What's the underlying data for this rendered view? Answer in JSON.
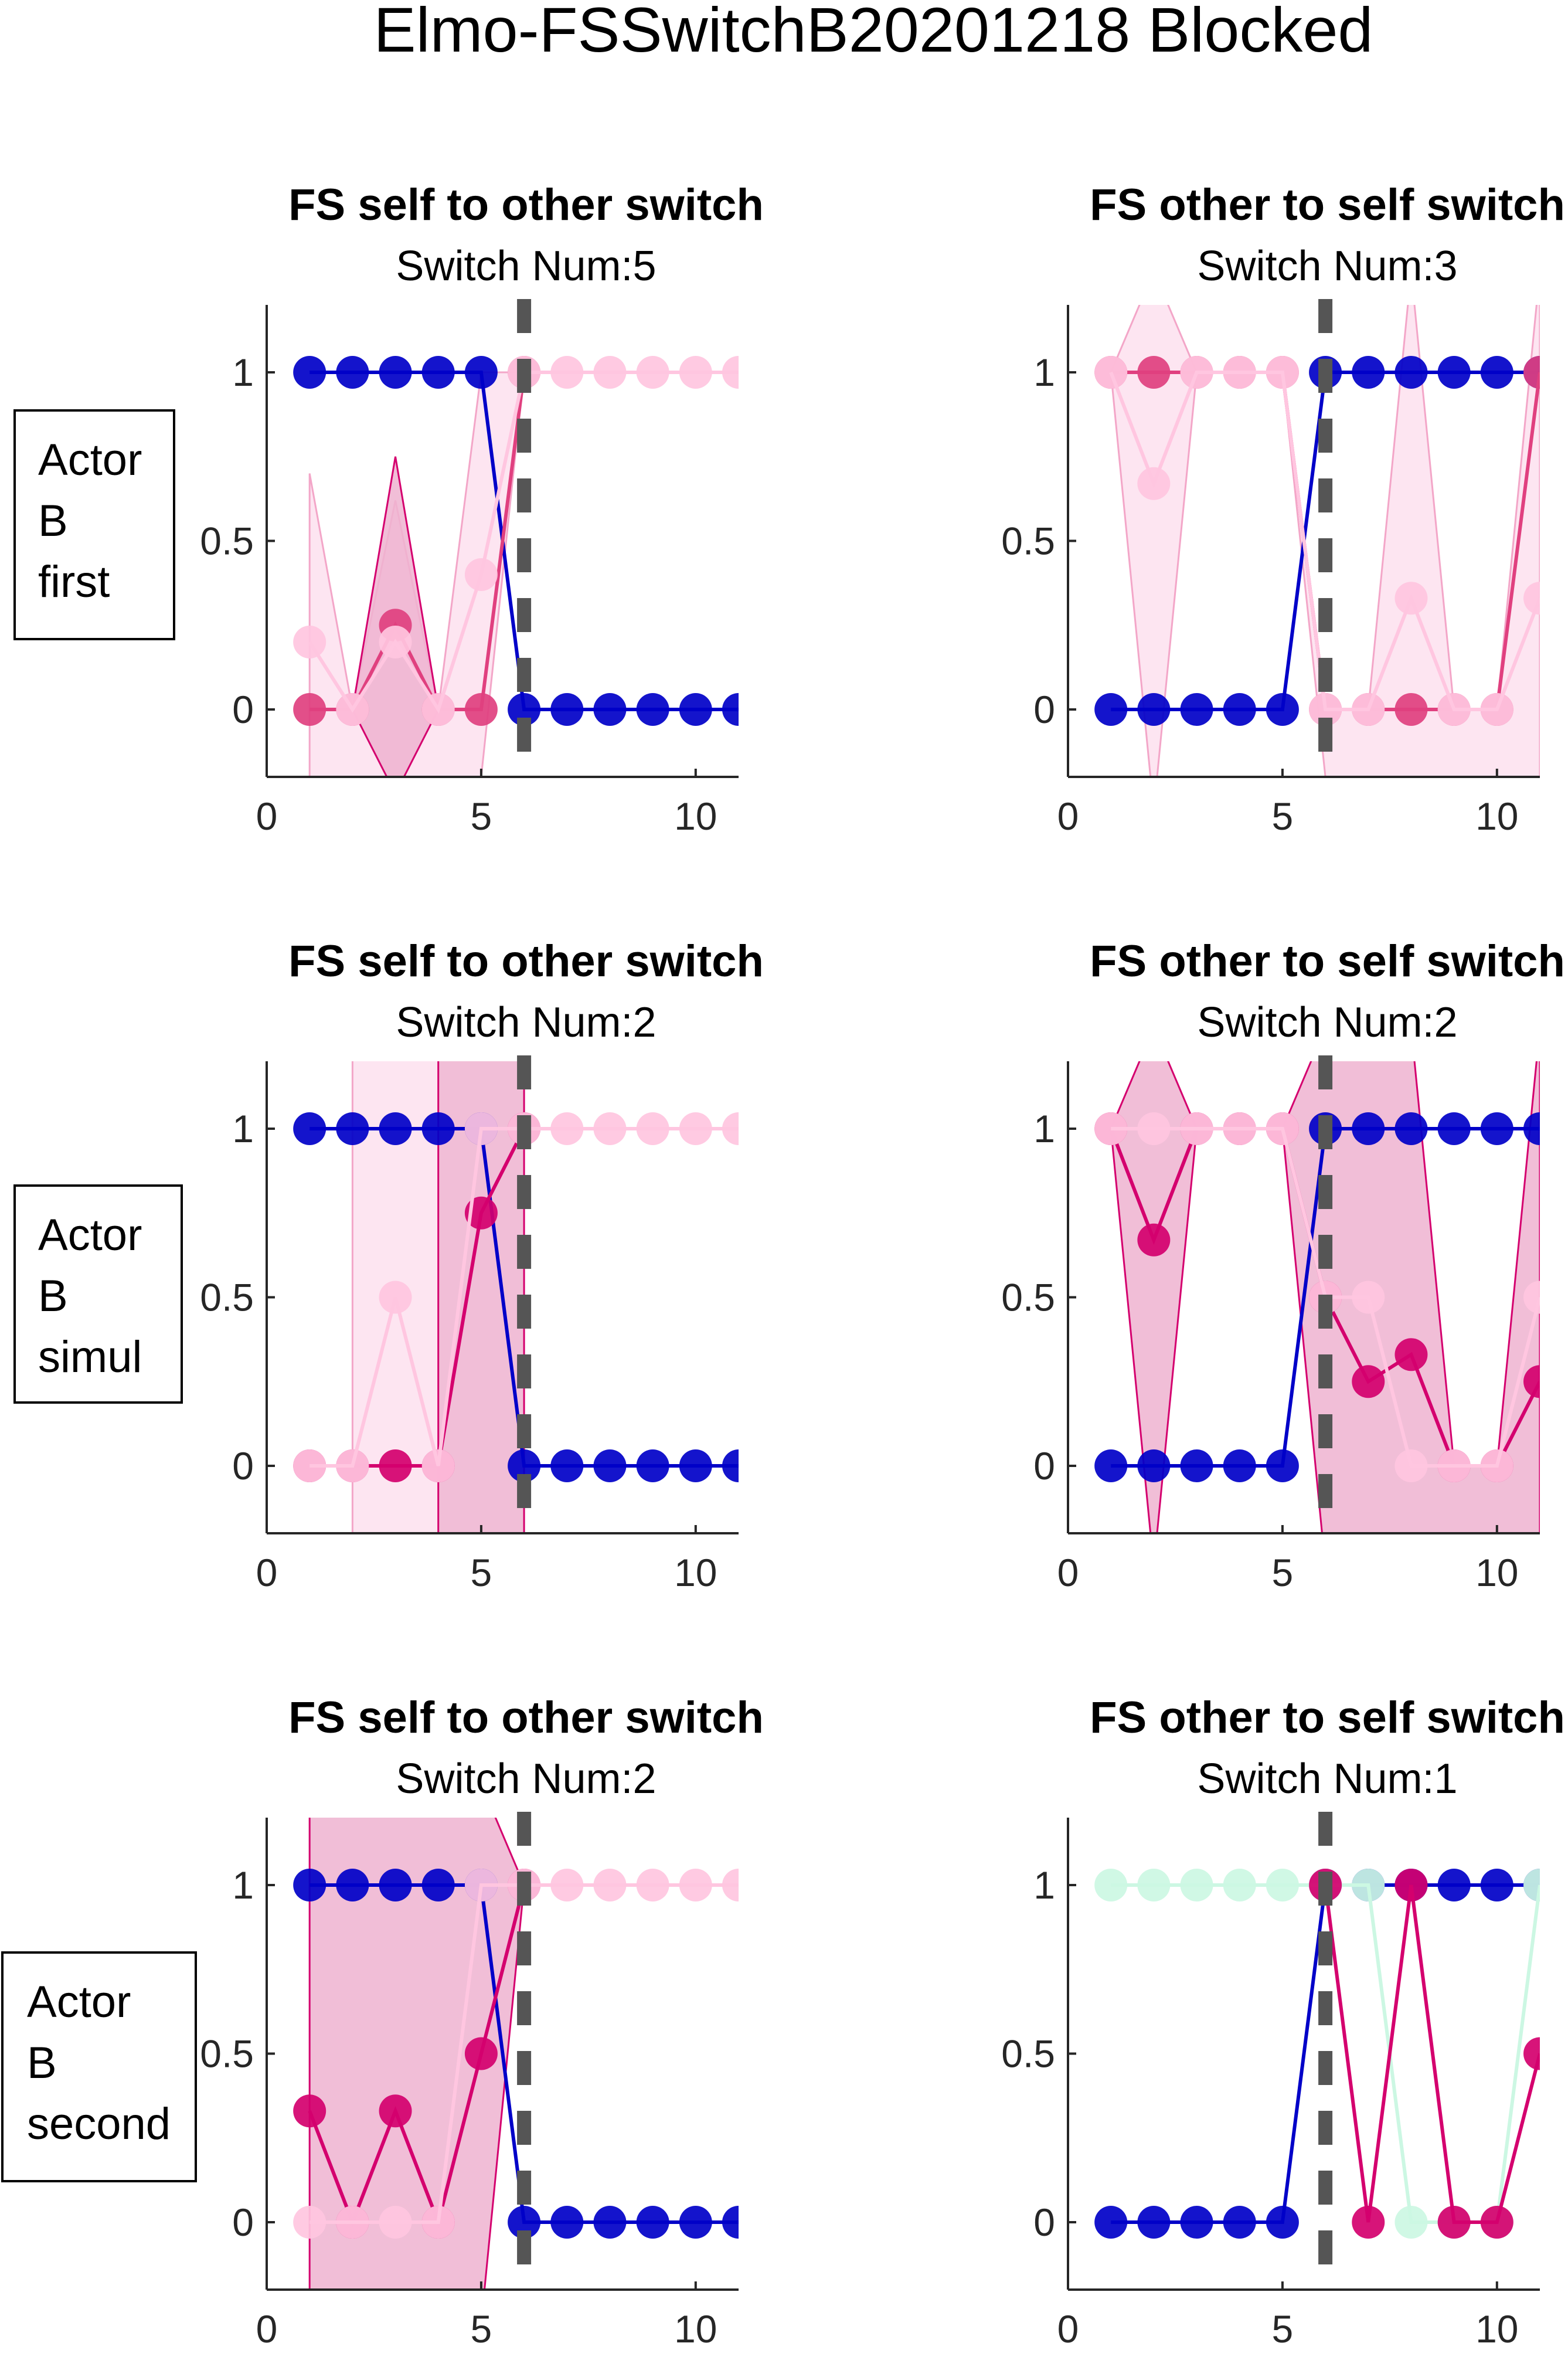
{
  "figure": {
    "title": "Elmo-FSSwitchB20201218 Blocked"
  },
  "colors": {
    "blue": "#0000c8",
    "blue_light": "#5050dc",
    "purple": "#6a2cc0",
    "magenta": "#d4006e",
    "pink_mid": "#e0407f",
    "pink_light": "#ffc6e0",
    "band_light": "#fde0ee",
    "band_dark": "#eeb3d0",
    "mint": "#ccf7e3",
    "switch_line": "#555555",
    "axis": "#262626"
  },
  "rows": [
    {
      "label_lines": [
        "Actor",
        "B",
        "first"
      ]
    },
    {
      "label_lines": [
        "Actor",
        "B",
        "simul"
      ]
    },
    {
      "label_lines": [
        "Actor",
        "B",
        "second"
      ]
    }
  ],
  "chart_data": [
    {
      "type": "line",
      "title": "FS self to other switch",
      "subtitle": "Switch Num:5",
      "xlim": [
        0,
        11
      ],
      "ylim": [
        -0.2,
        1.2
      ],
      "xticks": [
        "0",
        "5",
        "10"
      ],
      "yticks": [
        "0",
        "0.5",
        "1"
      ],
      "switch_x": 6,
      "bands": [
        {
          "color": "band_light",
          "x": [
            1,
            2,
            3,
            4,
            5,
            6
          ],
          "lo": [
            -0.3,
            -0.3,
            -0.3,
            -0.3,
            -0.2,
            1
          ],
          "hi": [
            0.7,
            0,
            0.62,
            0,
            1,
            1
          ]
        },
        {
          "color": "band_dark",
          "x": [
            1,
            2,
            3,
            4,
            5,
            6
          ],
          "lo": [
            0,
            0,
            -0.25,
            0,
            0,
            1
          ],
          "hi": [
            0,
            0,
            0.75,
            0,
            0,
            1
          ]
        }
      ],
      "series": [
        {
          "color": "blue",
          "x": [
            1,
            2,
            3,
            4,
            5,
            6,
            7,
            8,
            9,
            10,
            11
          ],
          "y": [
            1,
            1,
            1,
            1,
            1,
            0,
            0,
            0,
            0,
            0,
            0
          ]
        },
        {
          "color": "pink_mid",
          "x": [
            1,
            2,
            3,
            4,
            5,
            6
          ],
          "y": [
            0,
            0,
            0.25,
            0,
            0,
            1
          ]
        },
        {
          "color": "pink_light",
          "x": [
            1,
            2,
            3,
            4,
            5,
            6,
            7,
            8,
            9,
            10,
            11
          ],
          "y": [
            0.2,
            0,
            0.2,
            0,
            0.4,
            1,
            1,
            1,
            1,
            1,
            1
          ]
        }
      ]
    },
    {
      "type": "line",
      "title": "FS other to self switch",
      "subtitle": "Switch Num:3",
      "xlim": [
        0,
        11
      ],
      "ylim": [
        -0.2,
        1.2
      ],
      "xticks": [
        "0",
        "5",
        "10"
      ],
      "yticks": [
        "0",
        "0.5",
        "1"
      ],
      "switch_x": 6,
      "bands": [
        {
          "color": "band_light",
          "x": [
            1,
            2,
            3,
            4,
            5,
            6,
            7,
            8,
            9,
            10,
            11
          ],
          "lo": [
            1,
            -0.3,
            1,
            1,
            1,
            -0.2,
            -0.2,
            -0.3,
            -0.2,
            -0.2,
            -0.3
          ],
          "hi": [
            1,
            1.3,
            1,
            1,
            1,
            0,
            0,
            1.3,
            0,
            0,
            1.3
          ]
        }
      ],
      "series": [
        {
          "color": "blue",
          "x": [
            1,
            2,
            3,
            4,
            5,
            6,
            7,
            8,
            9,
            10,
            11
          ],
          "y": [
            0,
            0,
            0,
            0,
            0,
            1,
            1,
            1,
            1,
            1,
            1
          ]
        },
        {
          "color": "pink_mid",
          "x": [
            1,
            2,
            3,
            4,
            5,
            6,
            7,
            8,
            9,
            10,
            11
          ],
          "y": [
            1,
            1,
            1,
            1,
            1,
            0,
            0,
            0,
            0,
            0,
            1
          ]
        },
        {
          "color": "pink_light",
          "x": [
            1,
            2,
            3,
            4,
            5,
            6,
            7,
            8,
            9,
            10,
            11
          ],
          "y": [
            1,
            0.67,
            1,
            1,
            1,
            0,
            0,
            0.33,
            0,
            0,
            0.33
          ]
        }
      ]
    },
    {
      "type": "line",
      "title": "FS self to other switch",
      "subtitle": "Switch Num:2",
      "xlim": [
        0,
        11
      ],
      "ylim": [
        -0.2,
        1.2
      ],
      "xticks": [
        "0",
        "5",
        "10"
      ],
      "yticks": [
        "0",
        "0.5",
        "1"
      ],
      "switch_x": 6,
      "bands": [
        {
          "color": "band_light",
          "x": [
            2,
            3,
            4
          ],
          "lo": [
            -0.3,
            -0.3,
            -0.3
          ],
          "hi": [
            1.3,
            1.3,
            1.3
          ]
        },
        {
          "color": "band_dark",
          "x": [
            4,
            5,
            6
          ],
          "lo": [
            -0.3,
            -0.3,
            -0.3
          ],
          "hi": [
            1.3,
            1.3,
            1.3
          ]
        }
      ],
      "series": [
        {
          "color": "blue",
          "x": [
            1,
            2,
            3,
            4,
            5,
            6,
            7,
            8,
            9,
            10,
            11
          ],
          "y": [
            1,
            1,
            1,
            1,
            1,
            0,
            0,
            0,
            0,
            0,
            0
          ]
        },
        {
          "color": "magenta",
          "x": [
            1,
            2,
            3,
            4,
            5,
            6
          ],
          "y": [
            0,
            0,
            0,
            0,
            0.75,
            1
          ]
        },
        {
          "color": "pink_light",
          "x": [
            1,
            2,
            3,
            4,
            5,
            6,
            7,
            8,
            9,
            10,
            11
          ],
          "y": [
            0,
            0,
            0.5,
            0,
            1,
            1,
            1,
            1,
            1,
            1,
            1
          ]
        }
      ]
    },
    {
      "type": "line",
      "title": "FS other to self switch",
      "subtitle": "Switch Num:2",
      "xlim": [
        0,
        11
      ],
      "ylim": [
        -0.2,
        1.2
      ],
      "xticks": [
        "0",
        "5",
        "10"
      ],
      "yticks": [
        "0",
        "0.5",
        "1"
      ],
      "switch_x": 6,
      "bands": [
        {
          "color": "band_dark",
          "x": [
            1,
            2,
            3,
            4,
            5,
            6,
            7,
            8,
            9,
            10,
            11
          ],
          "lo": [
            1,
            -0.3,
            1,
            1,
            1,
            -0.3,
            -0.3,
            -0.3,
            -0.3,
            -0.3,
            -0.3
          ],
          "hi": [
            1,
            1.3,
            1,
            1,
            1,
            1.3,
            1.3,
            1.3,
            0,
            0,
            1.3
          ]
        }
      ],
      "series": [
        {
          "color": "blue",
          "x": [
            1,
            2,
            3,
            4,
            5,
            6,
            7,
            8,
            9,
            10,
            11
          ],
          "y": [
            0,
            0,
            0,
            0,
            0,
            1,
            1,
            1,
            1,
            1,
            1
          ]
        },
        {
          "color": "magenta",
          "x": [
            1,
            2,
            3,
            4,
            5,
            6,
            7,
            8,
            9,
            10,
            11
          ],
          "y": [
            1,
            0.67,
            1,
            1,
            1,
            0.5,
            0.25,
            0.33,
            0,
            0,
            0.25
          ]
        },
        {
          "color": "pink_light",
          "x": [
            1,
            2,
            3,
            4,
            5,
            6,
            7,
            8,
            9,
            10,
            11
          ],
          "y": [
            1,
            1,
            1,
            1,
            1,
            0.5,
            0.5,
            0,
            0,
            0,
            0.5
          ]
        }
      ]
    },
    {
      "type": "line",
      "title": "FS self to other switch",
      "subtitle": "Switch Num:2",
      "xlim": [
        0,
        11
      ],
      "ylim": [
        -0.2,
        1.2
      ],
      "xticks": [
        "0",
        "5",
        "10"
      ],
      "yticks": [
        "0",
        "0.5",
        "1"
      ],
      "switch_x": 6,
      "bands": [
        {
          "color": "band_dark",
          "x": [
            1,
            2,
            3,
            4,
            5,
            6
          ],
          "lo": [
            -0.3,
            -0.3,
            -0.3,
            -0.3,
            -0.3,
            1
          ],
          "hi": [
            1.3,
            1.3,
            1.3,
            1.3,
            1.3,
            1
          ]
        }
      ],
      "series": [
        {
          "color": "blue",
          "x": [
            1,
            2,
            3,
            4,
            5,
            6,
            7,
            8,
            9,
            10,
            11
          ],
          "y": [
            1,
            1,
            1,
            1,
            1,
            0,
            0,
            0,
            0,
            0,
            0
          ]
        },
        {
          "color": "magenta",
          "x": [
            1,
            2,
            3,
            4,
            5,
            6
          ],
          "y": [
            0.33,
            0,
            0.33,
            0,
            0.5,
            1
          ]
        },
        {
          "color": "pink_light",
          "x": [
            1,
            2,
            3,
            4,
            5,
            6,
            7,
            8,
            9,
            10,
            11
          ],
          "y": [
            0,
            0,
            0,
            0,
            1,
            1,
            1,
            1,
            1,
            1,
            1
          ]
        }
      ]
    },
    {
      "type": "line",
      "title": "FS other to self switch",
      "subtitle": "Switch Num:1",
      "xlim": [
        0,
        11
      ],
      "ylim": [
        -0.2,
        1.2
      ],
      "xticks": [
        "0",
        "5",
        "10"
      ],
      "yticks": [
        "0",
        "0.5",
        "1"
      ],
      "switch_x": 6,
      "bands": [],
      "series": [
        {
          "color": "blue",
          "x": [
            1,
            2,
            3,
            4,
            5,
            6,
            7,
            8,
            9,
            10,
            11
          ],
          "y": [
            0,
            0,
            0,
            0,
            0,
            1,
            1,
            1,
            1,
            1,
            1
          ]
        },
        {
          "color": "mint",
          "x": [
            1,
            2,
            3,
            4,
            5,
            6,
            7,
            8,
            9,
            10,
            11
          ],
          "y": [
            1,
            1,
            1,
            1,
            1,
            1,
            1,
            0,
            0,
            0,
            1
          ]
        },
        {
          "color": "magenta",
          "x": [
            6,
            7,
            8,
            9,
            10,
            11
          ],
          "y": [
            1,
            0,
            1,
            0,
            0,
            0.5
          ]
        }
      ]
    }
  ]
}
